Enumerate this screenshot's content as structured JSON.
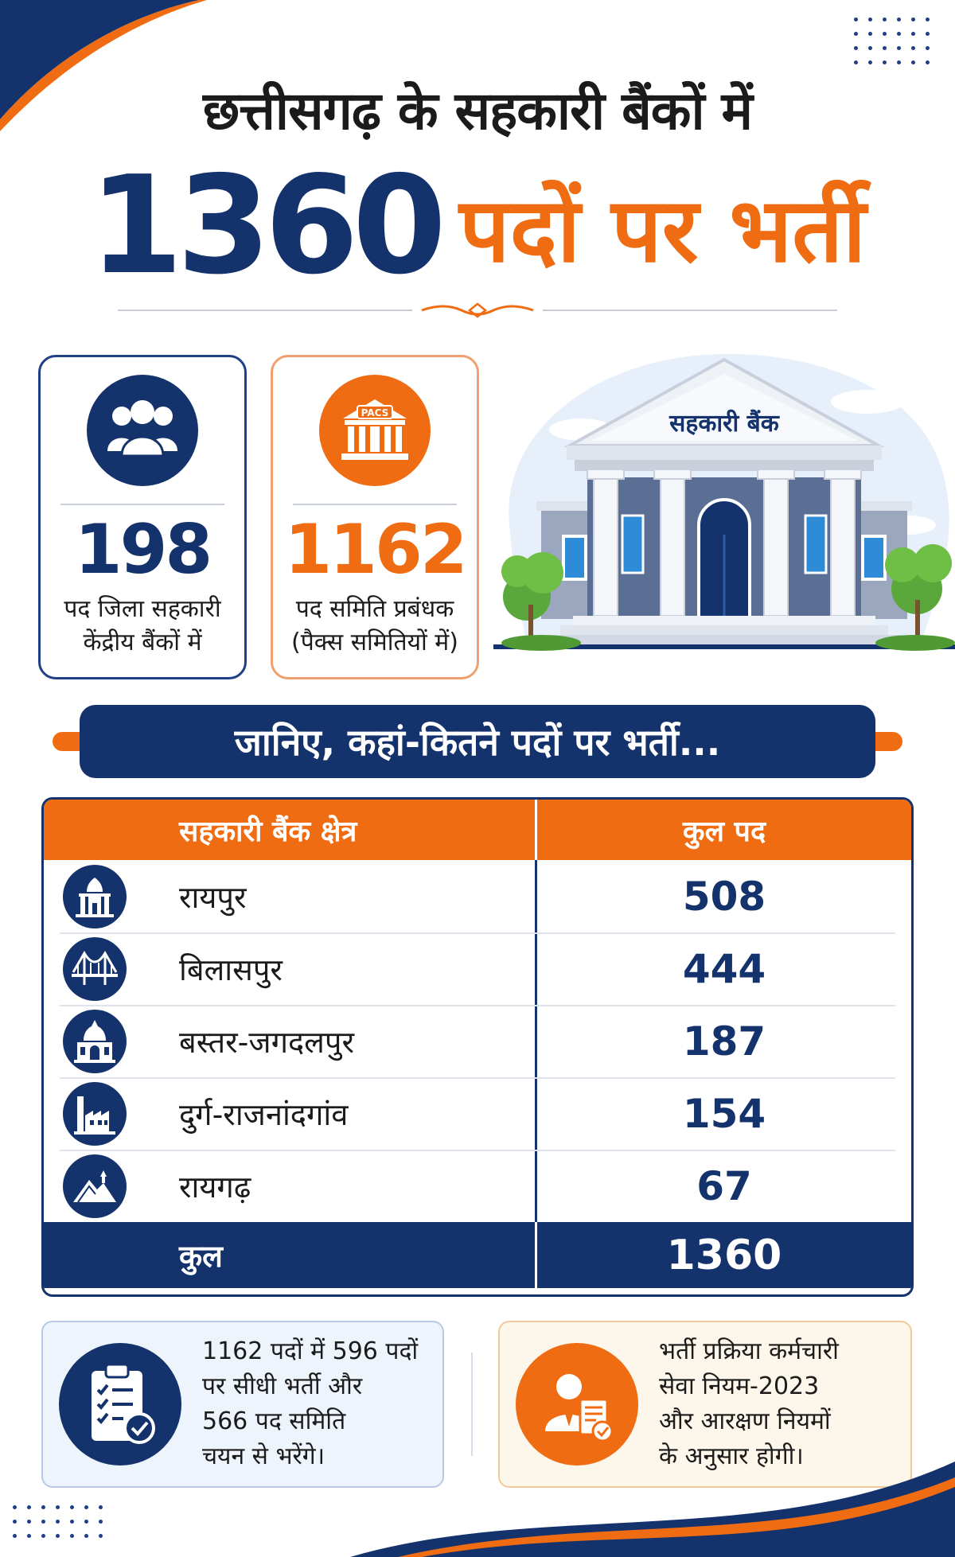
{
  "header": {
    "title_line1": "छत्तीसगढ़ के सहकारी बैंकों में",
    "title_number": "1360",
    "title_text": "पदों पर भर्ती"
  },
  "stats": [
    {
      "icon": "people-group-icon",
      "value": "198",
      "desc_line1": "पद जिला सहकारी",
      "desc_line2": "केंद्रीय बैंकों में"
    },
    {
      "icon": "pacs-building-icon",
      "icon_label": "PACS",
      "value": "1162",
      "desc_line1": "पद समिति प्रबंधक",
      "desc_line2": "(पैक्स समितियों में)"
    }
  ],
  "bank_sign": "सहकारी बैंक",
  "banner": "जानिए, कहां-कितने पदों पर भर्ती...",
  "table": {
    "col_region": "सहकारी बैंक क्षेत्र",
    "col_posts": "कुल पद",
    "rows": [
      {
        "icon": "temple-icon",
        "region": "रायपुर",
        "posts": "508"
      },
      {
        "icon": "bridge-icon",
        "region": "बिलासपुर",
        "posts": "444"
      },
      {
        "icon": "palace-icon",
        "region": "बस्तर-जगदलपुर",
        "posts": "187"
      },
      {
        "icon": "factory-icon",
        "region": "दुर्ग-राजनांदगांव",
        "posts": "154"
      },
      {
        "icon": "hill-shrine-icon",
        "region": "रायगढ़",
        "posts": "67"
      }
    ],
    "total_label": "कुल",
    "total_value": "1360"
  },
  "info": [
    {
      "icon": "clipboard-checklist-icon",
      "lines": [
        "1162 पदों में 596 पदों",
        "पर सीधी भर्ती और",
        "566 पद समिति",
        "चयन से भरेंगे।"
      ]
    },
    {
      "icon": "employee-document-icon",
      "lines": [
        "भर्ती प्रक्रिया कर्मचारी",
        "सेवा नियम-2023",
        "और आरक्षण नियमों",
        "के अनुसार होगी।"
      ]
    }
  ],
  "colors": {
    "navy": "#14326b",
    "orange": "#ef6c12"
  }
}
